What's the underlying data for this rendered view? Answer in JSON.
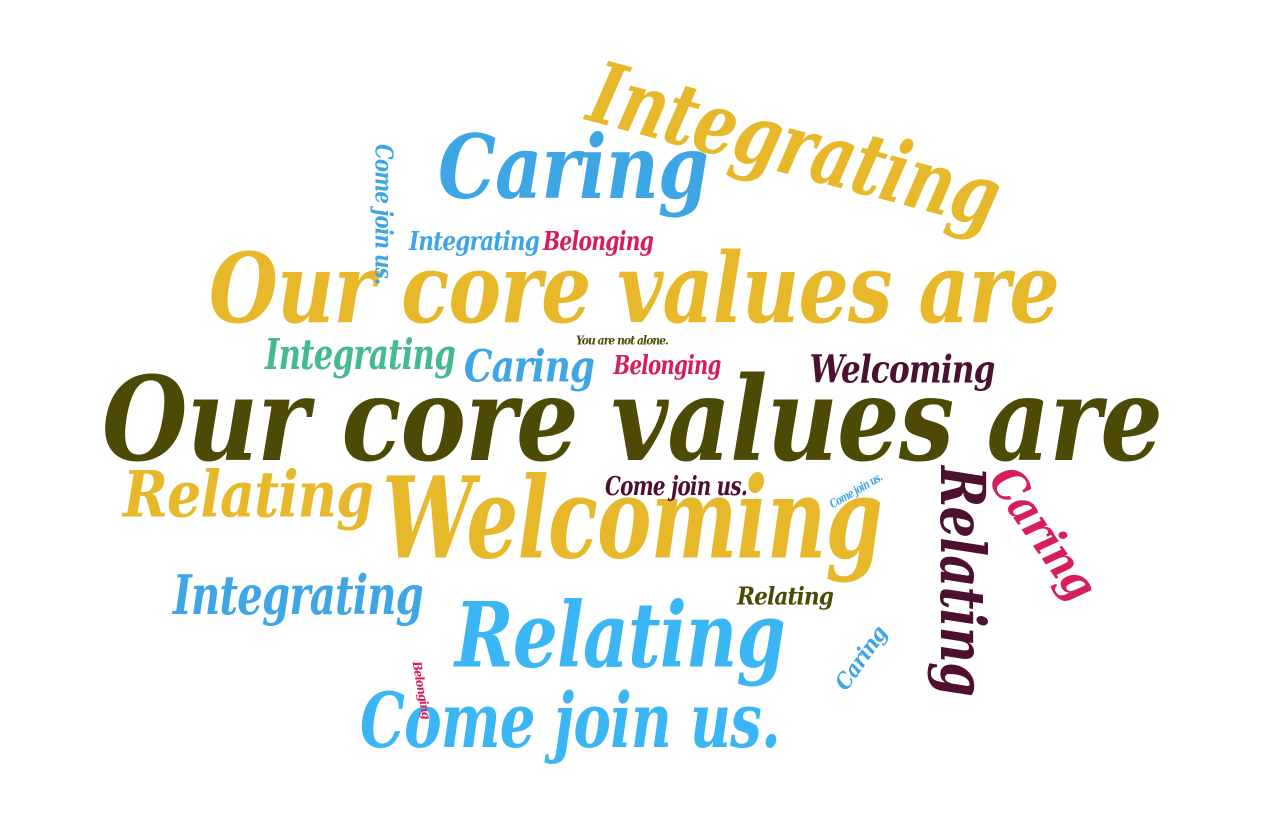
{
  "colors": {
    "background": "#ffffff",
    "gold": "#e6b82a",
    "olive": "#4d4a06",
    "sky_blue": "#3fa6e6",
    "bright_blue": "#3bb6f5",
    "teal": "#45b98f",
    "crimson": "#d61e5c",
    "maroon": "#4e1030"
  },
  "words": [
    {
      "text": "Our core values are",
      "color": "olive",
      "weight": 10
    },
    {
      "text": "Our core values are",
      "color": "gold",
      "weight": 8
    },
    {
      "text": "Welcoming",
      "color": "gold",
      "weight": 9
    },
    {
      "text": "Relating",
      "color": "bright_blue",
      "weight": 7
    },
    {
      "text": "Integrating",
      "color": "gold",
      "weight": 7
    },
    {
      "text": "Caring",
      "color": "sky_blue",
      "weight": 7
    },
    {
      "text": "Come join us.",
      "color": "bright_blue",
      "weight": 6
    },
    {
      "text": "Relating",
      "color": "maroon",
      "weight": 5
    },
    {
      "text": "Relating",
      "color": "gold",
      "weight": 5
    },
    {
      "text": "Integrating",
      "color": "sky_blue",
      "weight": 5
    },
    {
      "text": "Caring",
      "color": "crimson",
      "weight": 4
    },
    {
      "text": "Integrating",
      "color": "teal",
      "weight": 4
    },
    {
      "text": "Caring",
      "color": "sky_blue",
      "weight": 4
    },
    {
      "text": "Welcoming",
      "color": "maroon",
      "weight": 3
    },
    {
      "text": "Belonging",
      "color": "crimson",
      "weight": 2
    },
    {
      "text": "Integrating",
      "color": "sky_blue",
      "weight": 2
    },
    {
      "text": "Belonging",
      "color": "crimson",
      "weight": 2
    },
    {
      "text": "Come join us.",
      "color": "maroon",
      "weight": 2
    },
    {
      "text": "Relating",
      "color": "olive",
      "weight": 2
    },
    {
      "text": "Come join us.",
      "color": "sky_blue",
      "weight": 2
    },
    {
      "text": "Caring",
      "color": "sky_blue",
      "weight": 2
    },
    {
      "text": "You are not alone.",
      "color": "olive",
      "weight": 1
    },
    {
      "text": "Come join us.",
      "color": "sky_blue",
      "weight": 1
    },
    {
      "text": "Belonging",
      "color": "crimson",
      "weight": 1
    }
  ]
}
